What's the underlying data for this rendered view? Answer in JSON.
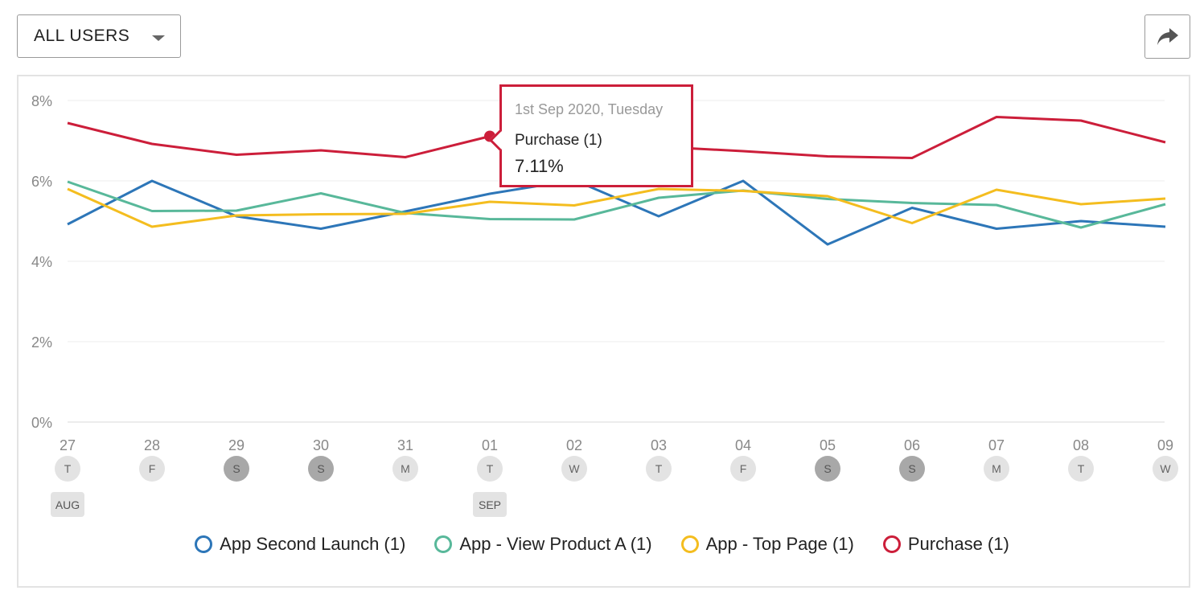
{
  "segment_selector": {
    "label": "ALL USERS"
  },
  "share_button": {
    "icon": "share-arrow-icon"
  },
  "colors": {
    "blue": "#2d76b8",
    "green": "#58b89a",
    "yellow": "#f4bd1f",
    "red": "#cc1e3a"
  },
  "chart_data": {
    "type": "line",
    "y_tick_labels": [
      "0%",
      "2%",
      "4%",
      "6%",
      "8%"
    ],
    "ylim": [
      0,
      8
    ],
    "grid": true,
    "x": [
      "27",
      "28",
      "29",
      "30",
      "31",
      "01",
      "02",
      "03",
      "04",
      "05",
      "06",
      "07",
      "08",
      "09"
    ],
    "weekday_labels": [
      "T",
      "F",
      "S",
      "S",
      "M",
      "T",
      "W",
      "T",
      "F",
      "S",
      "S",
      "M",
      "T",
      "W"
    ],
    "weekend_flags": [
      false,
      false,
      true,
      true,
      false,
      false,
      false,
      false,
      false,
      true,
      true,
      false,
      false,
      false
    ],
    "month_labels": [
      {
        "index": 0,
        "label": "AUG"
      },
      {
        "index": 5,
        "label": "SEP"
      }
    ],
    "series": [
      {
        "name": "App Second Launch (1)",
        "color": "#2d76b8",
        "values": [
          4.92,
          6.0,
          5.12,
          4.81,
          5.24,
          5.68,
          6.02,
          5.12,
          6.0,
          4.42,
          5.33,
          4.81,
          5.0,
          4.86
        ]
      },
      {
        "name": "App - View Product A (1)",
        "color": "#58b89a",
        "values": [
          5.98,
          5.25,
          5.26,
          5.69,
          5.2,
          5.05,
          5.04,
          5.58,
          5.76,
          5.55,
          5.45,
          5.4,
          4.84,
          5.42
        ]
      },
      {
        "name": "App - Top Page (1)",
        "color": "#f4bd1f",
        "values": [
          5.8,
          4.86,
          5.14,
          5.17,
          5.18,
          5.48,
          5.39,
          5.8,
          5.75,
          5.62,
          4.95,
          5.78,
          5.42,
          5.56
        ]
      },
      {
        "name": "Purchase (1)",
        "color": "#cc1e3a",
        "values": [
          7.44,
          6.92,
          6.65,
          6.76,
          6.59,
          7.11,
          7.0,
          6.85,
          6.74,
          6.61,
          6.57,
          7.59,
          7.5,
          6.96
        ]
      }
    ],
    "legend_position": "bottom",
    "tooltip": {
      "date": "1st Sep 2020, Tuesday",
      "series": "Purchase (1)",
      "value": "7.11%",
      "series_index": 3,
      "point_index": 5
    }
  }
}
